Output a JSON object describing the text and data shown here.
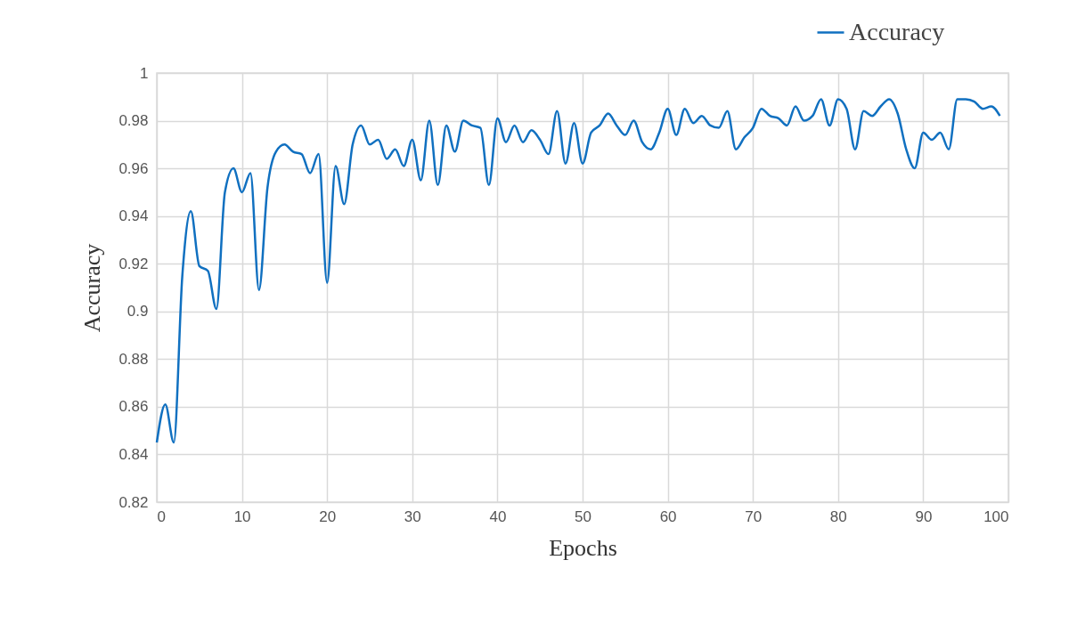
{
  "chart_data": {
    "type": "line",
    "xlabel": "Epochs",
    "ylabel": "Accuracy",
    "x": [
      0,
      1,
      2,
      3,
      4,
      5,
      6,
      7,
      8,
      9,
      10,
      11,
      12,
      13,
      14,
      15,
      16,
      17,
      18,
      19,
      20,
      21,
      22,
      23,
      24,
      25,
      26,
      27,
      28,
      29,
      30,
      31,
      32,
      33,
      34,
      35,
      36,
      37,
      38,
      39,
      40,
      41,
      42,
      43,
      44,
      45,
      46,
      47,
      48,
      49,
      50,
      51,
      52,
      53,
      54,
      55,
      56,
      57,
      58,
      59,
      60,
      61,
      62,
      63,
      64,
      65,
      66,
      67,
      68,
      69,
      70,
      71,
      72,
      73,
      74,
      75,
      76,
      77,
      78,
      79,
      80,
      81,
      82,
      83,
      84,
      85,
      86,
      87,
      88,
      89,
      90,
      91,
      92,
      93,
      94,
      95,
      96,
      97,
      98,
      99
    ],
    "series": [
      {
        "name": "Accuracy",
        "color": "#1070c0",
        "values": [
          0.845,
          0.861,
          0.845,
          0.915,
          0.942,
          0.919,
          0.917,
          0.901,
          0.95,
          0.96,
          0.95,
          0.958,
          0.909,
          0.952,
          0.967,
          0.97,
          0.967,
          0.966,
          0.958,
          0.966,
          0.912,
          0.961,
          0.945,
          0.97,
          0.978,
          0.97,
          0.972,
          0.964,
          0.968,
          0.961,
          0.972,
          0.955,
          0.98,
          0.953,
          0.978,
          0.967,
          0.98,
          0.978,
          0.977,
          0.953,
          0.981,
          0.971,
          0.978,
          0.971,
          0.976,
          0.972,
          0.966,
          0.984,
          0.962,
          0.979,
          0.962,
          0.975,
          0.978,
          0.983,
          0.978,
          0.974,
          0.98,
          0.971,
          0.968,
          0.975,
          0.985,
          0.974,
          0.985,
          0.979,
          0.982,
          0.978,
          0.977,
          0.984,
          0.968,
          0.973,
          0.977,
          0.985,
          0.982,
          0.981,
          0.978,
          0.986,
          0.98,
          0.982,
          0.989,
          0.978,
          0.989,
          0.985,
          0.968,
          0.984,
          0.982,
          0.986,
          0.989,
          0.983,
          0.968,
          0.96,
          0.975,
          0.972,
          0.975,
          0.968,
          0.989,
          0.989,
          0.988,
          0.985,
          0.986,
          0.982
        ]
      }
    ],
    "xlim": [
      0,
      100
    ],
    "xticks": [
      0,
      10,
      20,
      30,
      40,
      50,
      60,
      70,
      80,
      90,
      100
    ],
    "ylim": [
      0.82,
      1
    ],
    "yticks": [
      0.82,
      0.84,
      0.86,
      0.88,
      0.9,
      0.92,
      0.94,
      0.96,
      0.98,
      1
    ],
    "grid": true,
    "legend": "top right",
    "line_style": "solid",
    "marker": "none"
  }
}
